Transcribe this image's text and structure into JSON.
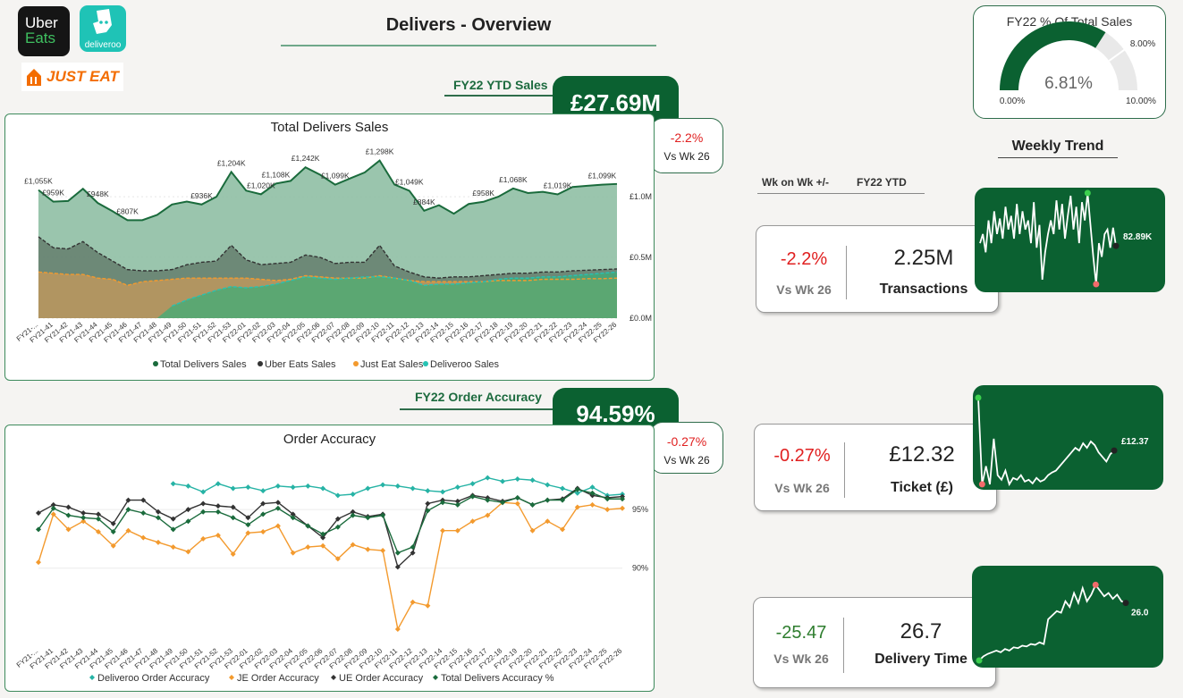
{
  "logos": {
    "ubereats": {
      "line1": "Uber",
      "line2": "Eats"
    },
    "deliveroo": {
      "text": "deliveroo"
    },
    "justeat": {
      "text": "JUST EAT"
    }
  },
  "page_title": "Delivers - Overview",
  "ytd_sales": {
    "label": "FY22 YTD Sales",
    "value": "£27.69M",
    "vs_pct": "-2.2%",
    "vs_label": "Vs Wk 26"
  },
  "order_accuracy_kpi": {
    "label": "FY22 Order Accuracy",
    "value": "94.59%",
    "vs_pct": "-0.27%",
    "vs_label": "Vs Wk 26"
  },
  "gauge": {
    "title": "FY22 % Of Total Sales",
    "value": 6.81,
    "value_label": "6.81%",
    "min_label": "0.00%",
    "max_label": "10.00%",
    "target_label": "8.00%",
    "min": 0,
    "max": 10,
    "target": 8
  },
  "weekly_trend": {
    "title": "Weekly Trend",
    "col1": "Wk on Wk +/-",
    "col2": "FY22 YTD"
  },
  "kpis": [
    {
      "pct": "-2.2%",
      "vs": "Vs Wk 26",
      "value": "2.25M",
      "name": "Transactions",
      "pct_color": "#e02020",
      "last_label": "82.89K",
      "spark": [
        0.45,
        0.55,
        0.35,
        0.7,
        0.45,
        0.8,
        0.55,
        0.72,
        0.5,
        0.85,
        0.6,
        0.75,
        0.5,
        0.88,
        0.55,
        0.8,
        0.6,
        0.7,
        0.45,
        0.9,
        0.4,
        0.65,
        0.05,
        0.35,
        0.55,
        0.7,
        0.55,
        0.92,
        0.6,
        0.88,
        0.5,
        0.75,
        0.97,
        0.6,
        0.85,
        0.45,
        0.9,
        0.7,
        1.0,
        0.65,
        0.3,
        0.0,
        0.45,
        0.3,
        0.55,
        0.6,
        0.4,
        0.62,
        0.42
      ]
    },
    {
      "pct": "-0.27%",
      "vs": "Vs Wk 26",
      "value": "£12.32",
      "name": "Ticket (£)",
      "pct_color": "#e02020",
      "last_label": "£12.37",
      "spark": [
        1.0,
        0.05,
        0.25,
        0.05,
        0.55,
        0.15,
        0.1,
        0.2,
        0.05,
        0.12,
        0.1,
        0.15,
        0.08,
        0.1,
        0.06,
        0.12,
        0.08,
        0.1,
        0.15,
        0.18,
        0.2,
        0.25,
        0.3,
        0.35,
        0.4,
        0.45,
        0.42,
        0.5,
        0.45,
        0.52,
        0.48,
        0.4,
        0.35,
        0.3,
        0.38,
        0.42
      ]
    },
    {
      "pct": "-25.47",
      "vs": "Vs Wk 26",
      "value": "26.7",
      "name": "Delivery Time",
      "pct_color": "#2e7d2e",
      "last_label": "26.0",
      "spark": [
        0.0,
        0.05,
        0.08,
        0.1,
        0.12,
        0.1,
        0.14,
        0.12,
        0.16,
        0.15,
        0.18,
        0.17,
        0.2,
        0.19,
        0.22,
        0.2,
        0.5,
        0.55,
        0.6,
        0.58,
        0.72,
        0.65,
        0.82,
        0.7,
        0.88,
        0.72,
        0.8,
        0.92,
        0.85,
        0.78,
        0.82,
        0.75,
        0.8,
        0.72,
        0.7
      ]
    }
  ],
  "chart_data": [
    {
      "type": "area",
      "title": "Total Delivers Sales",
      "categories": [
        "FY21-...",
        "FY21-41",
        "FY21-42",
        "FY21-43",
        "FY21-44",
        "FY21-45",
        "FY21-46",
        "FY21-47",
        "FY21-48",
        "FY21-49",
        "FY21-50",
        "FY21-51",
        "FY21-52",
        "FY21-53",
        "FY22-01",
        "FY22-02",
        "FY22-03",
        "FY22-04",
        "FY22-05",
        "FY22-06",
        "FY22-07",
        "FY22-08",
        "FY22-09",
        "FY22-10",
        "FY22-11",
        "FY22-12",
        "FY22-13",
        "FY22-14",
        "FY22-15",
        "FY22-16",
        "FY22-17",
        "FY22-18",
        "FY22-19",
        "FY22-20",
        "FY22-21",
        "FY22-22",
        "FY22-23",
        "FY22-24",
        "FY22-25",
        "FY22-26"
      ],
      "series": [
        {
          "name": "Total Delivers Sales",
          "color": "#1a6b3c",
          "fill": "#8fbfa4",
          "values": [
            1055,
            959,
            965,
            1065,
            948,
            880,
            807,
            807,
            850,
            936,
            960,
            936,
            1000,
            1204,
            1050,
            1020,
            1108,
            1130,
            1242,
            1180,
            1099,
            1150,
            1200,
            1298,
            1100,
            1049,
            884,
            930,
            860,
            940,
            958,
            1000,
            1068,
            1030,
            1040,
            1019,
            1080,
            1090,
            1099,
            1105
          ]
        },
        {
          "name": "Uber Eats Sales",
          "color": "#333333",
          "fill": "#5e7465",
          "values": [
            670,
            580,
            570,
            630,
            540,
            470,
            400,
            390,
            390,
            400,
            440,
            460,
            470,
            600,
            480,
            440,
            450,
            460,
            520,
            500,
            450,
            460,
            460,
            600,
            430,
            380,
            340,
            330,
            340,
            340,
            350,
            360,
            370,
            370,
            380,
            380,
            390,
            395,
            400,
            405
          ]
        },
        {
          "name": "Just Eat Sales",
          "color": "#f39a2e",
          "fill": "#c89a5a",
          "values": [
            380,
            370,
            360,
            360,
            330,
            320,
            270,
            300,
            310,
            320,
            330,
            330,
            330,
            330,
            330,
            320,
            310,
            320,
            350,
            340,
            330,
            330,
            330,
            350,
            330,
            310,
            300,
            300,
            300,
            300,
            300,
            310,
            310,
            310,
            320,
            320,
            320,
            325,
            325,
            330
          ]
        },
        {
          "name": "Deliveroo Sales",
          "color": "#26c3b3",
          "fill": "#3fad78",
          "values": [
            0,
            0,
            0,
            0,
            0,
            0,
            0,
            0,
            0,
            100,
            150,
            190,
            230,
            260,
            250,
            260,
            280,
            310,
            340,
            330,
            320,
            330,
            340,
            340,
            330,
            310,
            270,
            280,
            280,
            290,
            300,
            320,
            330,
            330,
            340,
            340,
            350,
            360,
            370,
            380
          ]
        }
      ],
      "data_labels": [
        {
          "i": 0,
          "text": "£1,055K"
        },
        {
          "i": 1,
          "text": "£959K"
        },
        {
          "i": 4,
          "text": "£948K"
        },
        {
          "i": 6,
          "text": "£807K"
        },
        {
          "i": 11,
          "text": "£936K"
        },
        {
          "i": 13,
          "text": "£1,204K"
        },
        {
          "i": 15,
          "text": "£1,020K"
        },
        {
          "i": 16,
          "text": "£1,108K"
        },
        {
          "i": 18,
          "text": "£1,242K"
        },
        {
          "i": 20,
          "text": "£1,099K"
        },
        {
          "i": 23,
          "text": "£1,298K"
        },
        {
          "i": 25,
          "text": "£1,049K"
        },
        {
          "i": 26,
          "text": "£884K"
        },
        {
          "i": 30,
          "text": "£958K"
        },
        {
          "i": 32,
          "text": "£1,068K"
        },
        {
          "i": 35,
          "text": "£1,019K"
        },
        {
          "i": 38,
          "text": "£1,099K"
        }
      ],
      "y_ticks": [
        {
          "v": 0,
          "label": "£0.0M"
        },
        {
          "v": 500,
          "label": "£0.5M"
        },
        {
          "v": 1000,
          "label": "£1.0M"
        }
      ],
      "ylim": [
        0,
        1420
      ],
      "legend_position": "bottom"
    },
    {
      "type": "line",
      "title": "Order Accuracy",
      "categories": [
        "FY21-...",
        "FY21-41",
        "FY21-42",
        "FY21-43",
        "FY21-44",
        "FY21-45",
        "FY21-46",
        "FY21-47",
        "FY21-48",
        "FY21-49",
        "FY21-50",
        "FY21-51",
        "FY21-52",
        "FY21-53",
        "FY22-01",
        "FY22-02",
        "FY22-03",
        "FY22-04",
        "FY22-05",
        "FY22-06",
        "FY22-07",
        "FY22-08",
        "FY22-09",
        "FY22-10",
        "FY22-11",
        "FY22-12",
        "FY22-13",
        "FY22-14",
        "FY22-15",
        "FY22-16",
        "FY22-17",
        "FY22-18",
        "FY22-19",
        "FY22-20",
        "FY22-21",
        "FY22-22",
        "FY22-23",
        "FY22-24",
        "FY22-25",
        "FY22-26"
      ],
      "series": [
        {
          "name": "Deliveroo Order Accuracy",
          "color": "#26b3a5",
          "values": [
            null,
            null,
            null,
            null,
            null,
            null,
            null,
            null,
            null,
            97.2,
            97.0,
            96.5,
            97.2,
            96.8,
            96.9,
            96.6,
            97.0,
            96.9,
            97.0,
            96.8,
            96.2,
            96.3,
            96.8,
            97.1,
            97.0,
            96.8,
            96.6,
            96.5,
            96.9,
            97.2,
            97.7,
            97.4,
            97.6,
            97.5,
            97.1,
            96.8,
            96.4,
            96.9,
            96.2,
            96.3
          ]
        },
        {
          "name": "JE Order Accuracy",
          "color": "#f39a2e",
          "values": [
            90.5,
            94.6,
            93.3,
            94.0,
            93.1,
            91.9,
            93.2,
            92.6,
            92.2,
            91.8,
            91.4,
            92.5,
            92.8,
            91.2,
            93.0,
            93.1,
            93.6,
            91.3,
            91.8,
            91.9,
            90.8,
            92.0,
            91.6,
            91.5,
            84.8,
            87.1,
            86.8,
            93.2,
            93.2,
            94.0,
            94.5,
            95.6,
            95.5,
            93.2,
            94.0,
            93.3,
            95.2,
            95.4,
            95.0,
            95.1
          ]
        },
        {
          "name": "UE Order Accuracy",
          "color": "#333333",
          "values": [
            94.7,
            95.4,
            95.2,
            94.7,
            94.6,
            93.8,
            95.8,
            95.8,
            94.8,
            94.2,
            95.0,
            95.5,
            95.3,
            95.2,
            94.3,
            95.5,
            95.6,
            94.6,
            93.6,
            92.6,
            94.2,
            94.8,
            94.4,
            94.6,
            90.1,
            91.3,
            95.5,
            95.8,
            95.7,
            96.2,
            96.0,
            95.7,
            96.0,
            95.4,
            95.8,
            95.9,
            96.8,
            96.2,
            96.0,
            96.1
          ]
        },
        {
          "name": "Total Delivers Accuracy %",
          "color": "#1a6b3c",
          "values": [
            93.3,
            95.1,
            94.5,
            94.3,
            94.2,
            93.1,
            95.0,
            94.7,
            94.3,
            93.3,
            94.0,
            94.8,
            94.8,
            94.3,
            93.7,
            94.6,
            95.1,
            94.3,
            93.6,
            92.9,
            93.5,
            94.5,
            94.3,
            94.5,
            91.3,
            91.8,
            94.9,
            95.6,
            95.4,
            96.1,
            95.8,
            95.6,
            96.0,
            95.4,
            95.8,
            95.8,
            96.7,
            96.4,
            95.9,
            95.9
          ]
        }
      ],
      "y_ticks": [
        {
          "v": 90,
          "label": "90%"
        },
        {
          "v": 95,
          "label": "95%"
        }
      ],
      "ylim": [
        83.5,
        99.5
      ],
      "legend_position": "bottom"
    }
  ]
}
